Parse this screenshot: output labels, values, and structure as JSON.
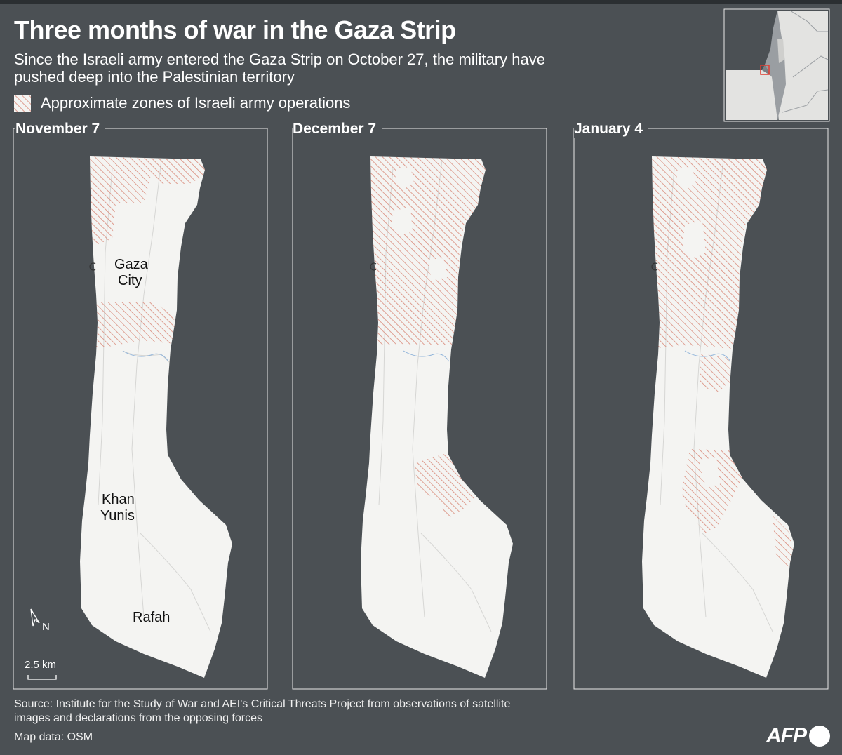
{
  "header": {
    "title": "Three months of war in the Gaza Strip",
    "subtitle": "Since the Israeli army entered the Gaza Strip on October 27, the military have pushed deep into the Palestinian territory"
  },
  "legend": {
    "label": "Approximate zones of Israeli army operations"
  },
  "panels": [
    {
      "date": "November 7"
    },
    {
      "date": "December 7"
    },
    {
      "date": "January 4"
    }
  ],
  "cities": {
    "gaza_1": "Gaza",
    "gaza_2": "City",
    "khan_1": "Khan",
    "khan_2": "Yunis",
    "rafah": "Rafah"
  },
  "north_label": "N",
  "scale_label": "2.5 km",
  "footer": {
    "source": "Source: Institute for the Study of War and AEI's Critical Threats Project from observations of satellite images and declarations from the  opposing forces",
    "map_data": "Map data: OSM",
    "logo": "AFP"
  },
  "colors": {
    "background": "#4b5054",
    "land": "#f4f4f2",
    "operations_hatch": "#d98a7a",
    "inset_highlight": "#e03c31"
  }
}
